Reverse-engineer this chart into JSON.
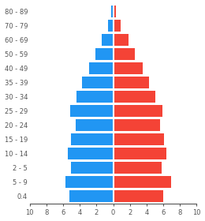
{
  "age_groups": [
    "0.4",
    "5 - 9",
    "2 - 5",
    "10 - 14",
    "15 - 19",
    "20 - 24",
    "25 - 29",
    "30 - 34",
    "35 - 39",
    "40 - 49",
    "50 - 59",
    "60 - 69",
    "70 - 79",
    "80 - 89"
  ],
  "male_values": [
    5.3,
    5.7,
    5.1,
    5.4,
    5.1,
    4.5,
    5.2,
    4.4,
    3.7,
    2.9,
    2.1,
    1.4,
    0.6,
    0.25
  ],
  "female_values": [
    6.0,
    7.0,
    5.8,
    6.4,
    6.1,
    5.6,
    5.9,
    5.1,
    4.3,
    3.5,
    2.6,
    1.8,
    0.9,
    0.35
  ],
  "male_color": "#2196F3",
  "female_color": "#F44336",
  "background_color": "#FFFFFF",
  "xlim": 10,
  "bar_height": 0.82,
  "axis_color": "#555555",
  "tick_fontsize": 6.0,
  "label_fontsize": 6.0
}
